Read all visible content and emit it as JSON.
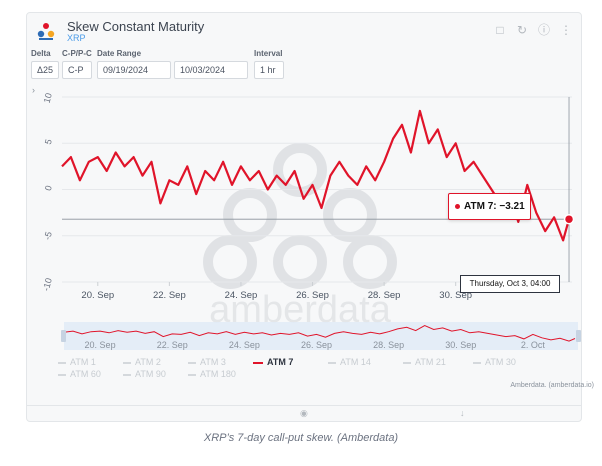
{
  "header": {
    "title": "Skew Constant Maturity",
    "subtitle": "XRP"
  },
  "controls": {
    "delta_label": "Delta",
    "delta_value": "Δ25",
    "cp_label": "C-P/P-C",
    "cp_value": "C-P",
    "range_label": "Date Range",
    "range_start": "09/19/2024",
    "range_end": "10/03/2024",
    "interval_label": "Interval",
    "interval_value": "1 hr"
  },
  "icons": {
    "logo": "amberdata-logo",
    "bookmark": "bookmark-icon",
    "refresh": "refresh-icon",
    "info": "info-icon",
    "more": "more-icon",
    "camera": "camera-icon",
    "download": "download-icon"
  },
  "watermark": "amberdata",
  "colors": {
    "series": "#e0142a",
    "accent": "#4a9be8",
    "inactive": "#c7ccd1"
  },
  "chart_data": {
    "type": "line",
    "ylim": [
      -10,
      10
    ],
    "yticks": [
      "10",
      "5",
      "0",
      "-5",
      "-10"
    ],
    "xticks": [
      "20. Sep",
      "22. Sep",
      "24. Sep",
      "26. Sep",
      "28. Sep",
      "30. Sep"
    ],
    "nav_xticks": [
      "20. Sep",
      "22. Sep",
      "24. Sep",
      "26. Sep",
      "28. Sep",
      "30. Sep",
      "2. Oct"
    ],
    "series": [
      {
        "name": "ATM 7",
        "x": [
          "2024-09-19 00:00",
          "2024-09-19 06:00",
          "2024-09-19 12:00",
          "2024-09-19 18:00",
          "2024-09-20 00:00",
          "2024-09-20 06:00",
          "2024-09-20 12:00",
          "2024-09-20 18:00",
          "2024-09-21 00:00",
          "2024-09-21 06:00",
          "2024-09-21 12:00",
          "2024-09-21 18:00",
          "2024-09-22 00:00",
          "2024-09-22 06:00",
          "2024-09-22 12:00",
          "2024-09-22 18:00",
          "2024-09-23 00:00",
          "2024-09-23 06:00",
          "2024-09-23 12:00",
          "2024-09-23 18:00",
          "2024-09-24 00:00",
          "2024-09-24 06:00",
          "2024-09-24 12:00",
          "2024-09-24 18:00",
          "2024-09-25 00:00",
          "2024-09-25 06:00",
          "2024-09-25 12:00",
          "2024-09-25 18:00",
          "2024-09-26 00:00",
          "2024-09-26 06:00",
          "2024-09-26 12:00",
          "2024-09-26 18:00",
          "2024-09-27 00:00",
          "2024-09-27 06:00",
          "2024-09-27 12:00",
          "2024-09-27 18:00",
          "2024-09-28 00:00",
          "2024-09-28 06:00",
          "2024-09-28 12:00",
          "2024-09-28 18:00",
          "2024-09-29 00:00",
          "2024-09-29 06:00",
          "2024-09-29 12:00",
          "2024-09-29 18:00",
          "2024-09-30 00:00",
          "2024-09-30 06:00",
          "2024-09-30 12:00",
          "2024-09-30 18:00",
          "2024-10-01 00:00",
          "2024-10-01 06:00",
          "2024-10-01 12:00",
          "2024-10-01 18:00",
          "2024-10-02 00:00",
          "2024-10-02 06:00",
          "2024-10-02 12:00",
          "2024-10-02 18:00",
          "2024-10-03 00:00",
          "2024-10-03 04:00"
        ],
        "y": [
          2.5,
          3.5,
          1.0,
          3.0,
          3.5,
          2.0,
          4.0,
          2.5,
          3.5,
          1.5,
          3.0,
          -1.5,
          1.0,
          0.5,
          2.5,
          -0.5,
          2.0,
          1.0,
          3.0,
          0.5,
          2.5,
          1.0,
          2.0,
          0.0,
          1.5,
          0.5,
          2.0,
          -1.0,
          0.5,
          -2.0,
          1.5,
          3.0,
          1.5,
          0.5,
          2.5,
          1.0,
          3.0,
          5.5,
          7.0,
          4.0,
          8.5,
          5.0,
          6.5,
          3.5,
          5.0,
          2.0,
          3.0,
          1.5,
          0.0,
          -1.5,
          -0.5,
          -3.5,
          0.5,
          -2.5,
          -4.5,
          -3.0,
          -5.5,
          -3.21
        ]
      }
    ],
    "tooltip": {
      "series": "ATM 7",
      "value": "-3.21",
      "text": "ATM 7: −3.21",
      "x_label": "Thursday, Oct 3, 04:00"
    },
    "legend": {
      "placement": "bottom",
      "items": [
        "ATM 1",
        "ATM 2",
        "ATM 3",
        "ATM 7",
        "ATM 14",
        "ATM 21",
        "ATM 30",
        "ATM 60",
        "ATM 90",
        "ATM 180"
      ],
      "active": "ATM 7"
    },
    "grid": true
  },
  "credit": "Amberdata. (amberdata.io)",
  "caption": "XRP’s 7-day call-put skew. (Amberdata)"
}
